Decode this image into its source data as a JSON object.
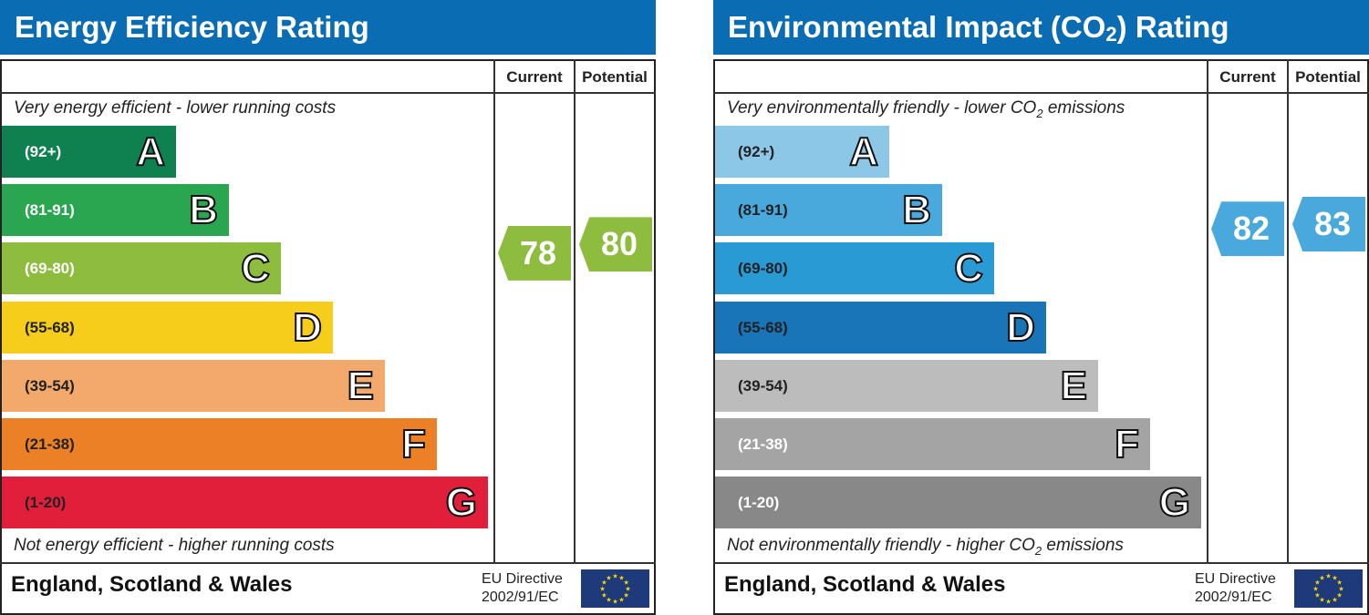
{
  "chart_data": [
    {
      "type": "bar",
      "title": "Energy Efficiency Rating",
      "columns": [
        "Current",
        "Potential"
      ],
      "top_note": "Very energy efficient - lower running costs",
      "bottom_note": "Not energy efficient - higher running costs",
      "bands": [
        {
          "letter": "A",
          "range": "(92+)",
          "lo": 92,
          "hi": 100,
          "color": "#0f8151"
        },
        {
          "letter": "B",
          "range": "(81-91)",
          "lo": 81,
          "hi": 91,
          "color": "#2aa650"
        },
        {
          "letter": "C",
          "range": "(69-80)",
          "lo": 69,
          "hi": 80,
          "color": "#8ebc3f"
        },
        {
          "letter": "D",
          "range": "(55-68)",
          "lo": 55,
          "hi": 68,
          "color": "#f6cd1b"
        },
        {
          "letter": "E",
          "range": "(39-54)",
          "lo": 39,
          "hi": 54,
          "color": "#f3a96b"
        },
        {
          "letter": "F",
          "range": "(21-38)",
          "lo": 21,
          "hi": 38,
          "color": "#ec8027"
        },
        {
          "letter": "G",
          "range": "(1-20)",
          "lo": 1,
          "hi": 20,
          "color": "#e21f3a"
        }
      ],
      "range_text_dark": [
        "D",
        "E",
        "F",
        "G"
      ],
      "current": 78,
      "potential": 80,
      "rating_color": "#8ebc3f",
      "footer": "England, Scotland & Wales",
      "directive_line1": "EU Directive",
      "directive_line2": "2002/91/EC"
    },
    {
      "type": "bar",
      "title": "Environmental Impact (CO2) Rating",
      "columns": [
        "Current",
        "Potential"
      ],
      "top_note": "Very environmentally friendly - lower CO2 emissions",
      "bottom_note": "Not environmentally friendly - higher CO2 emissions",
      "bands": [
        {
          "letter": "A",
          "range": "(92+)",
          "lo": 92,
          "hi": 100,
          "color": "#8dc7e8"
        },
        {
          "letter": "B",
          "range": "(81-91)",
          "lo": 81,
          "hi": 91,
          "color": "#4aa9dc"
        },
        {
          "letter": "C",
          "range": "(69-80)",
          "lo": 69,
          "hi": 80,
          "color": "#2a9ad4"
        },
        {
          "letter": "D",
          "range": "(55-68)",
          "lo": 55,
          "hi": 68,
          "color": "#1a74b8"
        },
        {
          "letter": "E",
          "range": "(39-54)",
          "lo": 39,
          "hi": 54,
          "color": "#bcbcbc"
        },
        {
          "letter": "F",
          "range": "(21-38)",
          "lo": 21,
          "hi": 38,
          "color": "#a4a4a4"
        },
        {
          "letter": "G",
          "range": "(1-20)",
          "lo": 1,
          "hi": 20,
          "color": "#888888"
        }
      ],
      "range_text_dark": [
        "A",
        "B",
        "C",
        "D",
        "E"
      ],
      "current": 82,
      "potential": 83,
      "rating_color": "#4aa9dc",
      "footer": "England, Scotland & Wales",
      "directive_line1": "EU Directive",
      "directive_line2": "2002/91/EC"
    }
  ]
}
